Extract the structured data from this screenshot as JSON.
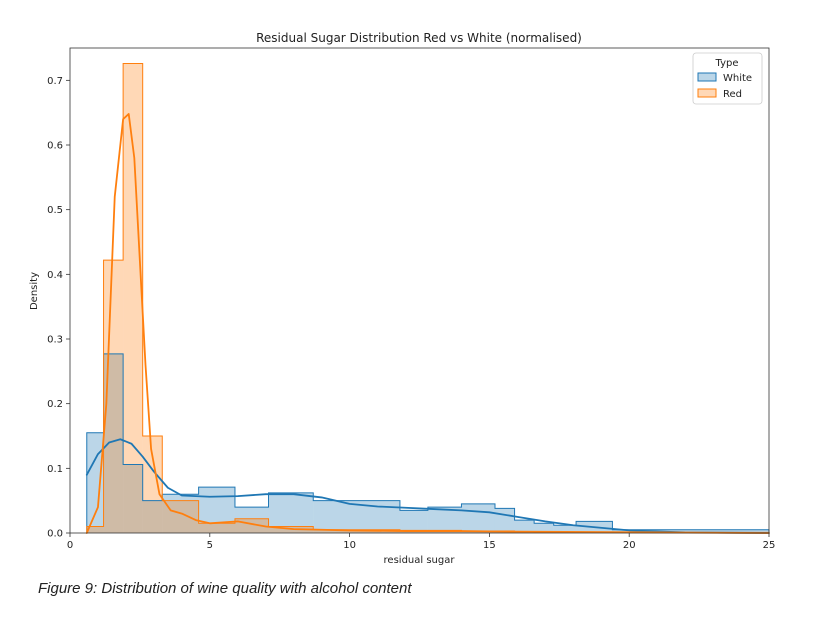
{
  "chart_data": {
    "type": "area",
    "title": "Residual Sugar Distribution Red vs White (normalised)",
    "xlabel": "residual sugar",
    "ylabel": "Density",
    "xlim": [
      0,
      25
    ],
    "ylim": [
      0,
      0.75
    ],
    "xticks": [
      0,
      5,
      10,
      15,
      20,
      25
    ],
    "xtick_labels": [
      "0",
      "5",
      "10",
      "15",
      "20",
      "25"
    ],
    "yticks": [
      0.0,
      0.1,
      0.2,
      0.3,
      0.4,
      0.5,
      0.6,
      0.7
    ],
    "ytick_labels": [
      "0.0",
      "0.1",
      "0.2",
      "0.3",
      "0.4",
      "0.5",
      "0.6",
      "0.7"
    ],
    "grid": false,
    "legend": {
      "title": "Type",
      "placement": "top-right"
    },
    "series": [
      {
        "name": "White",
        "color": "#1f77b4",
        "hist_edges": [
          0.6,
          1.2,
          1.9,
          2.6,
          3.3,
          4.6,
          5.9,
          7.1,
          8.7,
          11.8,
          12.8,
          14.0,
          15.2,
          15.9,
          16.6,
          17.3,
          18.1,
          19.4,
          25
        ],
        "hist_density": [
          0.155,
          0.277,
          0.106,
          0.05,
          0.06,
          0.071,
          0.04,
          0.062,
          0.05,
          0.035,
          0.04,
          0.045,
          0.038,
          0.02,
          0.015,
          0.012,
          0.018,
          0.005
        ],
        "kde_x": [
          0.6,
          1.0,
          1.4,
          1.8,
          2.2,
          2.6,
          3.0,
          3.5,
          4.0,
          5.0,
          6.0,
          7.0,
          8.0,
          9.0,
          10.0,
          11.0,
          12.0,
          13.0,
          14.0,
          15.0,
          16.0,
          17.0,
          18.0,
          20.0,
          22.0,
          25.0
        ],
        "kde_y": [
          0.09,
          0.122,
          0.14,
          0.145,
          0.138,
          0.118,
          0.095,
          0.07,
          0.058,
          0.056,
          0.057,
          0.06,
          0.06,
          0.055,
          0.045,
          0.041,
          0.039,
          0.037,
          0.035,
          0.032,
          0.025,
          0.018,
          0.012,
          0.004,
          0.001,
          0.0
        ]
      },
      {
        "name": "Red",
        "color": "#ff7f0e",
        "hist_edges": [
          0.6,
          1.2,
          1.9,
          2.6,
          3.3,
          4.6,
          5.9,
          7.1,
          8.7,
          11.8,
          12.8,
          14.0,
          15.2,
          15.9,
          16.6,
          25
        ],
        "hist_density": [
          0.01,
          0.422,
          0.726,
          0.15,
          0.05,
          0.015,
          0.022,
          0.01,
          0.005,
          0.004,
          0.004,
          0.003,
          0.003,
          0.002,
          0.001
        ],
        "kde_x": [
          0.6,
          1.0,
          1.3,
          1.6,
          1.9,
          2.1,
          2.3,
          2.5,
          2.7,
          2.9,
          3.2,
          3.6,
          4.0,
          4.5,
          5.0,
          6.0,
          7.0,
          8.0,
          9.0,
          10.0,
          12.0,
          14.0,
          16.0,
          25.0
        ],
        "kde_y": [
          0.0,
          0.04,
          0.2,
          0.52,
          0.64,
          0.648,
          0.58,
          0.42,
          0.26,
          0.13,
          0.06,
          0.035,
          0.03,
          0.02,
          0.015,
          0.018,
          0.01,
          0.006,
          0.005,
          0.004,
          0.003,
          0.003,
          0.002,
          0.0
        ]
      }
    ]
  },
  "figure": {
    "caption": "Figure 9: Distribution of wine quality with alcohol content"
  }
}
